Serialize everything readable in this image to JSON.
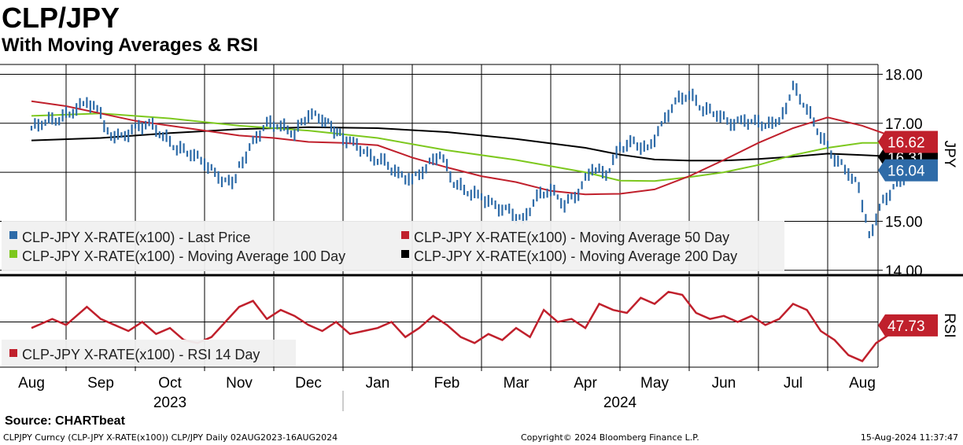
{
  "title": "CLP/JPY",
  "subtitle": "With Moving Averages & RSI",
  "source": "Source:  CHARTbeat",
  "footer": {
    "left": "CLPJPY Curncy (CLP-JPY X-RATE(x100)) CLP/JPY  Daily 02AUG2023-16AUG2024",
    "center": "Copyright© 2024 Bloomberg Finance L.P.",
    "right": "15-Aug-2024 11:37:47"
  },
  "colors": {
    "price": "#2e6ba8",
    "ma50": "#c0202c",
    "ma100": "#7dc81e",
    "ma200": "#000000",
    "rsi": "#c0202c",
    "grid": "#000000"
  },
  "chart_data": [
    {
      "type": "line",
      "title": "CLP/JPY",
      "ylabel": "JPY",
      "ylim": [
        13.9,
        18.2
      ],
      "yticks": [
        "18.00",
        "17.00",
        "15.00",
        "14.00"
      ],
      "x_months": [
        "Aug",
        "Sep",
        "Oct",
        "Nov",
        "Dec",
        "Jan",
        "Feb",
        "Mar",
        "Apr",
        "May",
        "Jun",
        "Jul",
        "Aug"
      ],
      "x_years": [
        "2023",
        "2024"
      ],
      "legend": [
        "CLP-JPY X-RATE(x100)  - Last Price",
        "CLP-JPY X-RATE(x100)  - Moving Average 50 Day",
        "CLP-JPY X-RATE(x100)  - Moving Average 100 Day",
        "CLP-JPY X-RATE(x100)  - Moving Average 200 Day"
      ],
      "badges": [
        {
          "label": "16.62",
          "value": 16.62,
          "color": "#c0202c"
        },
        {
          "label": "16.31",
          "value": 16.31,
          "color": "#000000"
        },
        {
          "label": "16.04",
          "value": 16.04,
          "color": "#2e6ba8"
        }
      ],
      "series": [
        {
          "name": "Last Price",
          "points": [
            [
              0,
              16.9
            ],
            [
              0.2,
              17.05
            ],
            [
              0.4,
              17.1
            ],
            [
              0.6,
              17.25
            ],
            [
              0.8,
              17.45
            ],
            [
              1.0,
              17.2
            ],
            [
              1.1,
              16.8
            ],
            [
              1.3,
              16.7
            ],
            [
              1.5,
              16.9
            ],
            [
              1.7,
              17.0
            ],
            [
              1.9,
              16.75
            ],
            [
              2.1,
              16.5
            ],
            [
              2.3,
              16.4
            ],
            [
              2.5,
              16.2
            ],
            [
              2.7,
              15.9
            ],
            [
              2.9,
              15.75
            ],
            [
              3.0,
              16.1
            ],
            [
              3.2,
              16.6
            ],
            [
              3.4,
              17.0
            ],
            [
              3.6,
              16.95
            ],
            [
              3.8,
              16.8
            ],
            [
              4.0,
              17.2
            ],
            [
              4.2,
              17.1
            ],
            [
              4.5,
              16.7
            ],
            [
              4.7,
              16.55
            ],
            [
              4.9,
              16.3
            ],
            [
              5.1,
              16.2
            ],
            [
              5.3,
              15.95
            ],
            [
              5.5,
              15.85
            ],
            [
              5.7,
              16.1
            ],
            [
              5.9,
              16.4
            ],
            [
              6.1,
              15.8
            ],
            [
              6.3,
              15.6
            ],
            [
              6.5,
              15.5
            ],
            [
              6.7,
              15.3
            ],
            [
              6.9,
              15.2
            ],
            [
              7.1,
              15.0
            ],
            [
              7.3,
              15.5
            ],
            [
              7.5,
              15.65
            ],
            [
              7.7,
              15.35
            ],
            [
              7.9,
              15.6
            ],
            [
              8.1,
              16.1
            ],
            [
              8.3,
              15.95
            ],
            [
              8.5,
              16.5
            ],
            [
              8.7,
              16.6
            ],
            [
              8.9,
              16.45
            ],
            [
              9.1,
              16.95
            ],
            [
              9.3,
              17.45
            ],
            [
              9.5,
              17.6
            ],
            [
              9.7,
              17.3
            ],
            [
              9.9,
              17.2
            ],
            [
              10.1,
              17.0
            ],
            [
              10.3,
              17.05
            ],
            [
              10.5,
              17.0
            ],
            [
              10.7,
              16.95
            ],
            [
              10.9,
              17.25
            ],
            [
              11.0,
              17.75
            ],
            [
              11.2,
              17.3
            ],
            [
              11.4,
              16.75
            ],
            [
              11.6,
              16.3
            ],
            [
              11.8,
              16.0
            ],
            [
              11.95,
              15.7
            ],
            [
              12.1,
              14.7
            ],
            [
              12.3,
              15.4
            ],
            [
              12.5,
              15.75
            ],
            [
              12.7,
              16.04
            ]
          ]
        },
        {
          "name": "Moving Average 50 Day",
          "points": [
            [
              0,
              17.45
            ],
            [
              0.5,
              17.35
            ],
            [
              1.0,
              17.2
            ],
            [
              1.5,
              17.05
            ],
            [
              2.0,
              16.95
            ],
            [
              2.5,
              16.85
            ],
            [
              3.0,
              16.75
            ],
            [
              3.5,
              16.7
            ],
            [
              4.0,
              16.62
            ],
            [
              4.5,
              16.6
            ],
            [
              5.0,
              16.55
            ],
            [
              5.5,
              16.3
            ],
            [
              6.0,
              16.1
            ],
            [
              6.5,
              15.92
            ],
            [
              7.0,
              15.8
            ],
            [
              7.5,
              15.62
            ],
            [
              8.0,
              15.55
            ],
            [
              8.5,
              15.56
            ],
            [
              9.0,
              15.65
            ],
            [
              9.5,
              15.92
            ],
            [
              10.0,
              16.25
            ],
            [
              10.5,
              16.6
            ],
            [
              11.0,
              16.9
            ],
            [
              11.5,
              17.12
            ],
            [
              12.0,
              16.95
            ],
            [
              12.5,
              16.7
            ],
            [
              12.9,
              16.62
            ]
          ]
        },
        {
          "name": "Moving Average 100 Day",
          "points": [
            [
              0,
              17.15
            ],
            [
              1.0,
              17.2
            ],
            [
              2.0,
              17.1
            ],
            [
              3.0,
              16.95
            ],
            [
              4.0,
              16.85
            ],
            [
              5.0,
              16.7
            ],
            [
              6.0,
              16.45
            ],
            [
              7.0,
              16.25
            ],
            [
              8.0,
              16.0
            ],
            [
              8.5,
              15.83
            ],
            [
              9.0,
              15.82
            ],
            [
              9.5,
              15.9
            ],
            [
              10.0,
              16.0
            ],
            [
              10.5,
              16.15
            ],
            [
              11.0,
              16.35
            ],
            [
              11.5,
              16.5
            ],
            [
              12.0,
              16.6
            ],
            [
              12.5,
              16.6
            ],
            [
              12.9,
              16.62
            ]
          ]
        },
        {
          "name": "Moving Average 200 Day",
          "points": [
            [
              0,
              16.65
            ],
            [
              1.0,
              16.7
            ],
            [
              2.0,
              16.8
            ],
            [
              3.0,
              16.88
            ],
            [
              4.0,
              16.92
            ],
            [
              5.0,
              16.9
            ],
            [
              6.0,
              16.82
            ],
            [
              7.0,
              16.68
            ],
            [
              8.0,
              16.5
            ],
            [
              8.5,
              16.36
            ],
            [
              9.0,
              16.26
            ],
            [
              9.5,
              16.24
            ],
            [
              10.0,
              16.24
            ],
            [
              10.5,
              16.27
            ],
            [
              11.0,
              16.32
            ],
            [
              11.5,
              16.38
            ],
            [
              12.0,
              16.35
            ],
            [
              12.5,
              16.32
            ],
            [
              12.9,
              16.31
            ]
          ]
        }
      ]
    },
    {
      "type": "line",
      "title": "RSI",
      "ylabel": "RSI",
      "ylim": [
        20,
        80
      ],
      "legend": [
        "CLP-JPY X-RATE(x100)  - RSI 14 Day"
      ],
      "badges": [
        {
          "label": "47.73",
          "value": 47.73,
          "color": "#c0202c"
        }
      ],
      "series": [
        {
          "name": "RSI 14 Day",
          "points": [
            [
              0,
              46
            ],
            [
              0.3,
              52
            ],
            [
              0.5,
              48
            ],
            [
              0.8,
              60
            ],
            [
              1.0,
              52
            ],
            [
              1.2,
              48
            ],
            [
              1.4,
              44
            ],
            [
              1.6,
              50
            ],
            [
              1.8,
              42
            ],
            [
              2.0,
              46
            ],
            [
              2.2,
              38
            ],
            [
              2.4,
              36
            ],
            [
              2.6,
              40
            ],
            [
              2.8,
              50
            ],
            [
              3.0,
              60
            ],
            [
              3.2,
              64
            ],
            [
              3.4,
              52
            ],
            [
              3.6,
              58
            ],
            [
              3.8,
              54
            ],
            [
              4.0,
              48
            ],
            [
              4.2,
              44
            ],
            [
              4.4,
              50
            ],
            [
              4.6,
              42
            ],
            [
              4.8,
              44
            ],
            [
              5.0,
              46
            ],
            [
              5.2,
              50
            ],
            [
              5.4,
              40
            ],
            [
              5.6,
              46
            ],
            [
              5.8,
              54
            ],
            [
              6.0,
              48
            ],
            [
              6.2,
              40
            ],
            [
              6.4,
              36
            ],
            [
              6.6,
              42
            ],
            [
              6.8,
              38
            ],
            [
              7.0,
              46
            ],
            [
              7.2,
              40
            ],
            [
              7.4,
              58
            ],
            [
              7.6,
              50
            ],
            [
              7.8,
              52
            ],
            [
              8.0,
              46
            ],
            [
              8.2,
              62
            ],
            [
              8.4,
              58
            ],
            [
              8.6,
              56
            ],
            [
              8.8,
              66
            ],
            [
              9.0,
              62
            ],
            [
              9.2,
              70
            ],
            [
              9.4,
              68
            ],
            [
              9.6,
              56
            ],
            [
              9.8,
              52
            ],
            [
              10.0,
              54
            ],
            [
              10.2,
              50
            ],
            [
              10.4,
              54
            ],
            [
              10.6,
              48
            ],
            [
              10.8,
              52
            ],
            [
              11.0,
              62
            ],
            [
              11.2,
              58
            ],
            [
              11.4,
              44
            ],
            [
              11.6,
              38
            ],
            [
              11.8,
              28
            ],
            [
              12.0,
              24
            ],
            [
              12.2,
              36
            ],
            [
              12.4,
              42
            ],
            [
              12.6,
              44
            ],
            [
              12.9,
              47.73
            ]
          ]
        }
      ]
    }
  ]
}
